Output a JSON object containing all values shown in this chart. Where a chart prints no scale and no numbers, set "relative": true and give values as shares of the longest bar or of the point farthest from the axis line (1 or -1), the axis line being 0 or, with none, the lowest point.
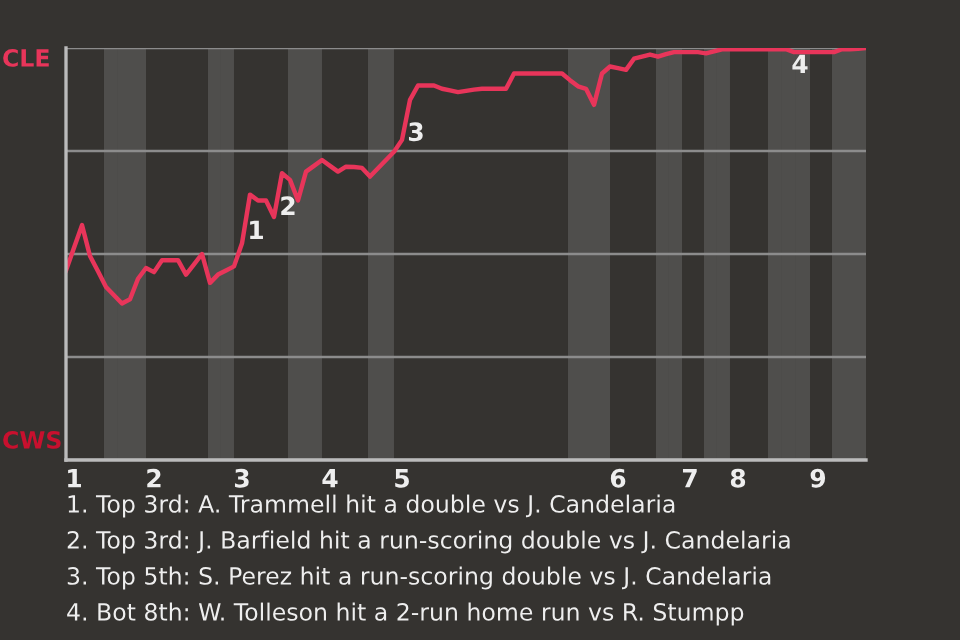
{
  "chart_data": {
    "type": "line",
    "relative": true,
    "categories": [
      null,
      "1",
      null,
      null,
      null,
      null,
      null,
      null,
      null,
      null,
      null,
      "2",
      null,
      null,
      null,
      null,
      null,
      null,
      null,
      null,
      null,
      null,
      "3",
      null,
      null,
      null,
      null,
      null,
      null,
      null,
      null,
      null,
      null,
      "4",
      null,
      null,
      null,
      null,
      null,
      null,
      null,
      null,
      "5",
      null,
      null,
      null,
      null,
      null,
      null,
      null,
      null,
      null,
      null,
      null,
      null,
      null,
      null,
      null,
      null,
      null,
      null,
      null,
      null,
      null,
      null,
      null,
      null,
      null,
      null,
      "6",
      null,
      null,
      null,
      null,
      null,
      null,
      null,
      null,
      "7",
      null,
      null,
      null,
      null,
      null,
      "8",
      null,
      null,
      null,
      null,
      null,
      null,
      null,
      null,
      null,
      "9",
      null,
      null,
      null,
      null,
      null,
      null
    ],
    "series": [
      {
        "color": "#e8355a",
        "values": [
          0.46,
          0.515,
          0.57,
          0.495,
          0.458,
          0.42,
          0.4,
          0.38,
          0.39,
          0.44,
          0.466,
          0.456,
          0.485,
          0.485,
          0.485,
          0.45,
          0.475,
          0.5,
          0.43,
          0.45,
          0.46,
          0.47,
          0.526,
          0.644,
          0.63,
          0.63,
          0.59,
          0.696,
          0.68,
          0.63,
          0.7,
          0.714,
          0.728,
          0.714,
          0.7,
          0.712,
          0.711,
          0.709,
          0.688,
          0.708,
          0.728,
          0.748,
          0.777,
          0.874,
          0.909,
          0.909,
          0.909,
          0.901,
          0.897,
          0.893,
          0.896,
          0.899,
          0.901,
          0.901,
          0.901,
          0.901,
          0.938,
          0.938,
          0.938,
          0.938,
          0.938,
          0.938,
          0.938,
          0.922,
          0.907,
          0.901,
          0.862,
          0.938,
          0.955,
          0.951,
          0.947,
          0.974,
          0.979,
          0.984,
          0.979,
          0.985,
          0.99,
          0.99,
          0.99,
          0.99,
          0.987,
          0.992,
          0.997,
          0.997,
          0.997,
          0.997,
          0.997,
          0.997,
          0.997,
          0.997,
          0.997,
          0.99,
          0.99,
          0.99,
          0.99,
          0.99,
          0.99,
          0.997,
          0.997,
          0.998,
          1.0
        ]
      }
    ],
    "grid": "y",
    "marker": "none",
    "line_style": "solid",
    "annotations": [
      "1",
      "2",
      "3",
      "4",
      "CLE",
      "CWS",
      "1. Top 3rd: A. Trammell hit a double vs J. Candelaria",
      "2. Top 3rd: J. Barfield hit a run-scoring double vs J. Candelaria",
      "3. Top 5th: S. Perez hit a run-scoring double vs J. Candelaria",
      "4. Bot 8th: W. Tolleson hit a 2-run home run vs R. Stumpp"
    ]
  }
}
